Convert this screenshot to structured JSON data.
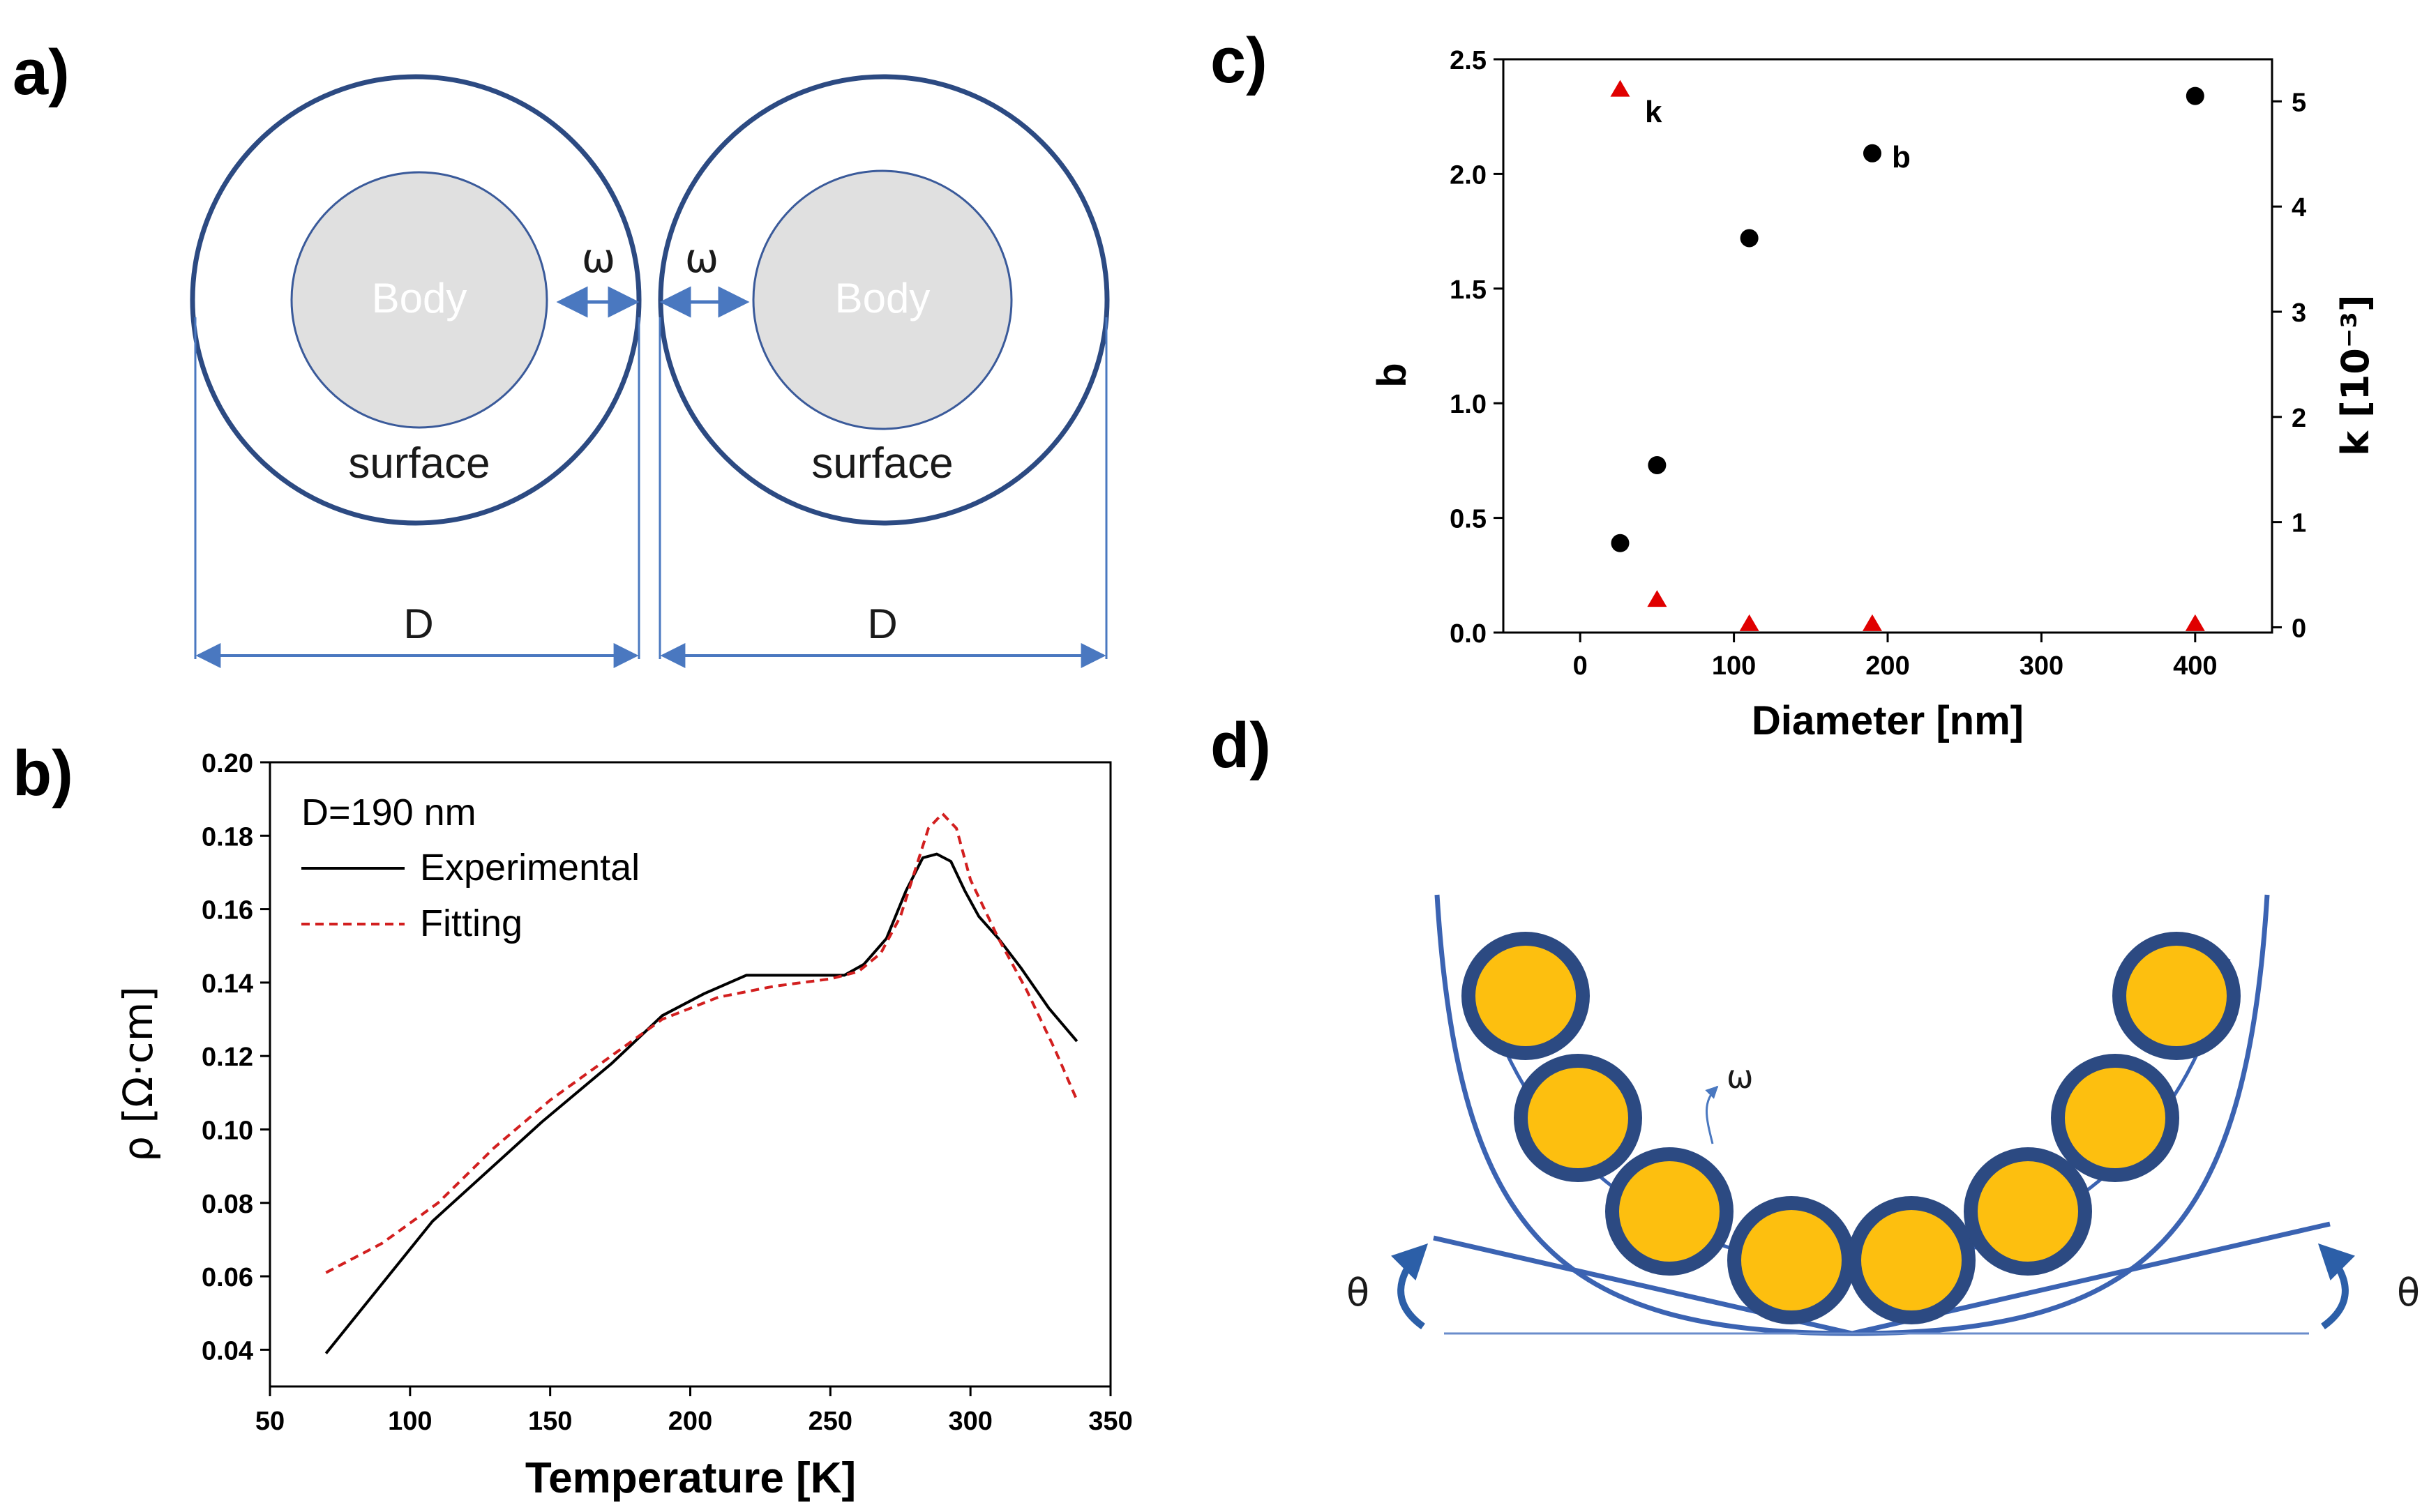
{
  "panels": {
    "a": {
      "label": "a)",
      "body_label": "Body",
      "surface_label": "surface",
      "omega": "ω",
      "diameter_label": "D"
    },
    "b": {
      "label": "b)"
    },
    "c": {
      "label": "c)"
    },
    "d": {
      "label": "d)",
      "omega": "ω",
      "theta": "θ"
    }
  },
  "colors": {
    "ring_blue": "#2c4a82",
    "arrow_blue": "#4a78c0",
    "body_gray": "#e0e0e0",
    "ball_gold": "#fdbf0f",
    "fit_red": "#d21f1f",
    "marker_red": "#e00000"
  },
  "chart_data": [
    {
      "type": "line",
      "panel": "b",
      "xlabel": "Temperature [K]",
      "ylabel": "ρ [Ω·cm]",
      "xlim": [
        50,
        350
      ],
      "ylim": [
        0.03,
        0.2
      ],
      "xticks": [
        50,
        100,
        150,
        200,
        250,
        300,
        350
      ],
      "yticks": [
        0.04,
        0.06,
        0.08,
        0.1,
        0.12,
        0.14,
        0.16,
        0.18,
        0.2
      ],
      "ytick_labels": [
        "0.04",
        "0.06",
        "0.08",
        "0.10",
        "0.12",
        "0.14",
        "0.16",
        "0.18",
        "0.20"
      ],
      "legend": {
        "title": "D=190 nm",
        "position": "top-left",
        "entries": [
          "Experimental",
          "Fitting"
        ]
      },
      "series": [
        {
          "name": "Experimental",
          "style": "solid",
          "color": "#000000",
          "x": [
            70,
            108,
            147,
            172,
            190,
            205,
            220,
            240,
            255,
            262,
            270,
            277,
            283,
            288,
            293,
            298,
            303,
            310,
            318,
            328,
            338
          ],
          "y": [
            0.039,
            0.075,
            0.102,
            0.118,
            0.131,
            0.137,
            0.142,
            0.142,
            0.142,
            0.145,
            0.152,
            0.165,
            0.174,
            0.175,
            0.173,
            0.165,
            0.158,
            0.152,
            0.144,
            0.133,
            0.124
          ]
        },
        {
          "name": "Fitting",
          "style": "dashed",
          "color": "#d21f1f",
          "x": [
            70,
            90,
            110,
            130,
            150,
            170,
            190,
            210,
            230,
            250,
            260,
            268,
            275,
            280,
            285,
            290,
            295,
            300,
            310,
            320,
            330,
            338
          ],
          "y": [
            0.061,
            0.069,
            0.08,
            0.095,
            0.108,
            0.119,
            0.13,
            0.136,
            0.139,
            0.141,
            0.143,
            0.148,
            0.158,
            0.17,
            0.182,
            0.186,
            0.182,
            0.168,
            0.152,
            0.138,
            0.122,
            0.108
          ]
        }
      ]
    },
    {
      "type": "scatter",
      "panel": "c",
      "xlabel": "Diameter [nm]",
      "ylabel": "b",
      "y2label": "k [10⁻³]",
      "xlim": [
        -50,
        450
      ],
      "ylim": [
        0,
        2.5
      ],
      "y2lim": [
        -0.05,
        5.4
      ],
      "xticks": [
        0,
        100,
        200,
        300,
        400
      ],
      "yticks": [
        0.0,
        0.5,
        1.0,
        1.5,
        2.0,
        2.5
      ],
      "ytick_labels": [
        "0.0",
        "0.5",
        "1.0",
        "1.5",
        "2.0",
        "2.5"
      ],
      "y2ticks": [
        0,
        1,
        2,
        3,
        4,
        5
      ],
      "series": [
        {
          "name": "b",
          "marker": "circle",
          "axis": "left",
          "color": "#000000",
          "x": [
            26,
            50,
            110,
            190,
            400
          ],
          "y": [
            0.39,
            0.73,
            1.72,
            2.09,
            2.34
          ]
        },
        {
          "name": "k",
          "marker": "triangle",
          "axis": "right",
          "color": "#e00000",
          "x": [
            26,
            50,
            110,
            190,
            400
          ],
          "y": [
            5.1,
            0.25,
            0.02,
            0.02,
            0.02
          ]
        }
      ]
    }
  ]
}
